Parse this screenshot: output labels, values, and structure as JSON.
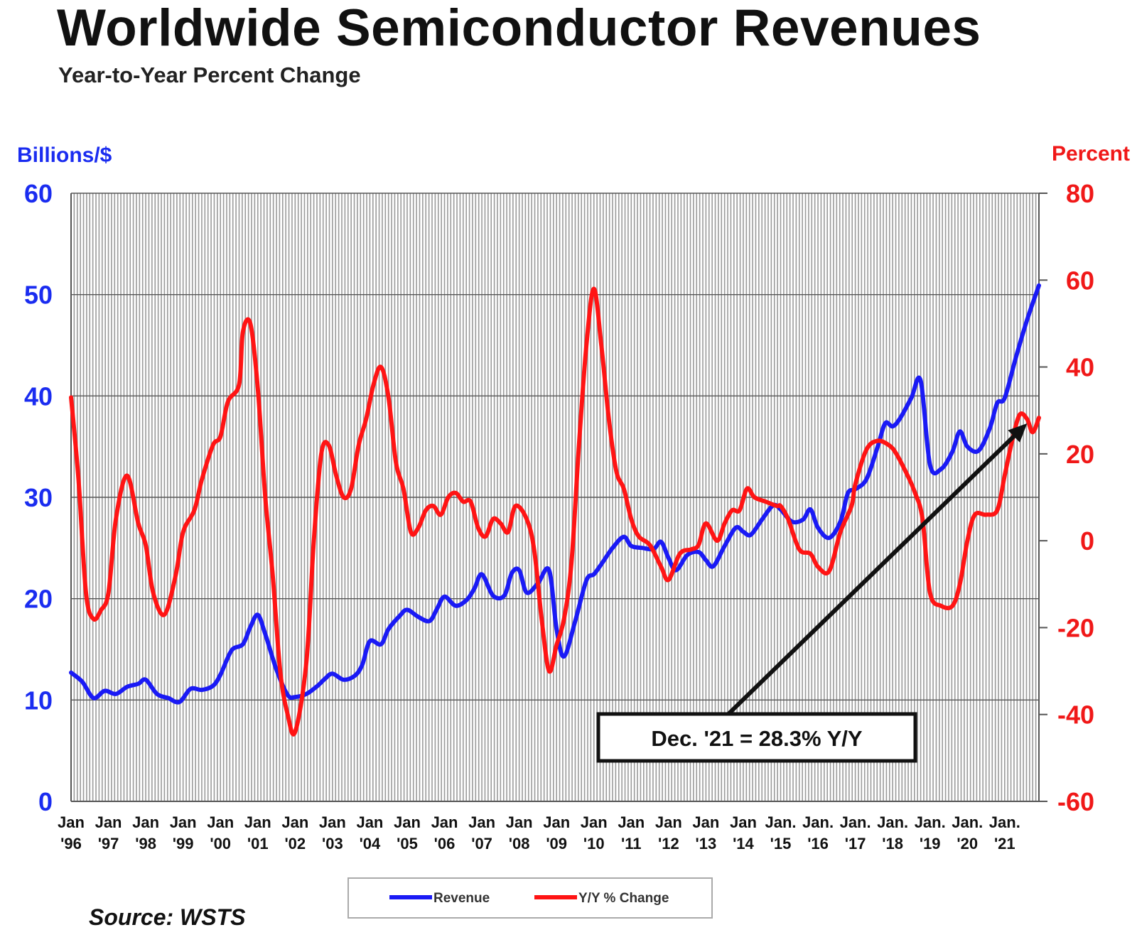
{
  "colors": {
    "revenue": "#1a1af5",
    "yoy": "#ff1414",
    "left_axis": "#1a2cf0",
    "right_axis": "#f01818",
    "grid": "#9a9a9a",
    "background": "#ffffff"
  },
  "chart_data": {
    "type": "line",
    "title": "Worldwide Semiconductor Revenues",
    "subtitle": "Year-to-Year Percent Change",
    "ylabel": "Billions/$",
    "y2label": "Percent",
    "ylim": [
      0,
      60
    ],
    "y2lim": [
      -60,
      80
    ],
    "yticks": [
      "0",
      "10",
      "20",
      "30",
      "40",
      "50",
      "60"
    ],
    "y2ticks": [
      "-60",
      "-40",
      "-20",
      "0",
      "20",
      "40",
      "60",
      "80"
    ],
    "xlim": [
      1996.0,
      2021.917
    ],
    "grid": true,
    "legend_position": "bottom",
    "annotation": {
      "text": "Dec. '21 = 28.3% Y/Y",
      "points_to": [
        2021.6,
        27
      ]
    },
    "source": "Source: WSTS",
    "x_tick_labels": [
      {
        "x": 1996,
        "line1": "Jan",
        "line2": "'96"
      },
      {
        "x": 1997,
        "line1": "Jan",
        "line2": "'97"
      },
      {
        "x": 1998,
        "line1": "Jan",
        "line2": "'98"
      },
      {
        "x": 1999,
        "line1": "Jan",
        "line2": "'99"
      },
      {
        "x": 2000,
        "line1": "Jan",
        "line2": "'00"
      },
      {
        "x": 2001,
        "line1": "Jan",
        "line2": "'01"
      },
      {
        "x": 2002,
        "line1": "Jan",
        "line2": "'02"
      },
      {
        "x": 2003,
        "line1": "Jan",
        "line2": "'03"
      },
      {
        "x": 2004,
        "line1": "Jan",
        "line2": "'04"
      },
      {
        "x": 2005,
        "line1": "Jan",
        "line2": "'05"
      },
      {
        "x": 2006,
        "line1": "Jan",
        "line2": "'06"
      },
      {
        "x": 2007,
        "line1": "Jan",
        "line2": "'07"
      },
      {
        "x": 2008,
        "line1": "Jan",
        "line2": "'08"
      },
      {
        "x": 2009,
        "line1": "Jan",
        "line2": "'09"
      },
      {
        "x": 2010,
        "line1": "Jan",
        "line2": "'10"
      },
      {
        "x": 2011,
        "line1": "Jan",
        "line2": "'11"
      },
      {
        "x": 2012,
        "line1": "Jan",
        "line2": "'12"
      },
      {
        "x": 2013,
        "line1": "Jan",
        "line2": "'13"
      },
      {
        "x": 2014,
        "line1": "Jan",
        "line2": "'14"
      },
      {
        "x": 2015,
        "line1": "Jan.",
        "line2": "'15"
      },
      {
        "x": 2016,
        "line1": "Jan.",
        "line2": "'16"
      },
      {
        "x": 2017,
        "line1": "Jan.",
        "line2": "'17"
      },
      {
        "x": 2018,
        "line1": "Jan.",
        "line2": "'18"
      },
      {
        "x": 2019,
        "line1": "Jan.",
        "line2": "'19"
      },
      {
        "x": 2020,
        "line1": "Jan.",
        "line2": "'20"
      },
      {
        "x": 2021,
        "line1": "Jan.",
        "line2": "'21"
      }
    ],
    "series": [
      {
        "name": "Revenue",
        "axis": "left",
        "points": [
          [
            1996.0,
            12.7
          ],
          [
            1996.3,
            11.8
          ],
          [
            1996.6,
            10.2
          ],
          [
            1996.9,
            10.9
          ],
          [
            1997.2,
            10.6
          ],
          [
            1997.5,
            11.3
          ],
          [
            1997.8,
            11.6
          ],
          [
            1998.0,
            12.0
          ],
          [
            1998.3,
            10.6
          ],
          [
            1998.6,
            10.2
          ],
          [
            1998.9,
            9.8
          ],
          [
            1999.2,
            11.1
          ],
          [
            1999.5,
            11.0
          ],
          [
            1999.8,
            11.4
          ],
          [
            2000.0,
            12.5
          ],
          [
            2000.3,
            14.9
          ],
          [
            2000.6,
            15.5
          ],
          [
            2000.8,
            17.2
          ],
          [
            2001.0,
            18.4
          ],
          [
            2001.2,
            16.5
          ],
          [
            2001.5,
            13.0
          ],
          [
            2001.8,
            10.5
          ],
          [
            2002.0,
            10.3
          ],
          [
            2002.3,
            10.6
          ],
          [
            2002.6,
            11.4
          ],
          [
            2002.8,
            12.1
          ],
          [
            2003.0,
            12.6
          ],
          [
            2003.3,
            12.0
          ],
          [
            2003.6,
            12.4
          ],
          [
            2003.8,
            13.5
          ],
          [
            2004.0,
            15.8
          ],
          [
            2004.3,
            15.5
          ],
          [
            2004.5,
            17.0
          ],
          [
            2004.8,
            18.3
          ],
          [
            2005.0,
            18.9
          ],
          [
            2005.3,
            18.2
          ],
          [
            2005.6,
            17.8
          ],
          [
            2005.8,
            19.0
          ],
          [
            2006.0,
            20.2
          ],
          [
            2006.3,
            19.3
          ],
          [
            2006.6,
            19.9
          ],
          [
            2006.8,
            21.0
          ],
          [
            2007.0,
            22.4
          ],
          [
            2007.3,
            20.3
          ],
          [
            2007.6,
            20.3
          ],
          [
            2007.8,
            22.5
          ],
          [
            2008.0,
            22.8
          ],
          [
            2008.2,
            20.6
          ],
          [
            2008.5,
            21.5
          ],
          [
            2008.8,
            22.8
          ],
          [
            2009.0,
            17.0
          ],
          [
            2009.2,
            14.3
          ],
          [
            2009.5,
            17.8
          ],
          [
            2009.8,
            21.8
          ],
          [
            2010.0,
            22.4
          ],
          [
            2010.2,
            23.4
          ],
          [
            2010.5,
            25.0
          ],
          [
            2010.8,
            26.1
          ],
          [
            2011.0,
            25.2
          ],
          [
            2011.3,
            25.0
          ],
          [
            2011.6,
            24.9
          ],
          [
            2011.8,
            25.6
          ],
          [
            2012.0,
            24.0
          ],
          [
            2012.2,
            22.8
          ],
          [
            2012.5,
            24.3
          ],
          [
            2012.8,
            24.6
          ],
          [
            2013.0,
            23.8
          ],
          [
            2013.2,
            23.2
          ],
          [
            2013.5,
            25.2
          ],
          [
            2013.8,
            27.0
          ],
          [
            2014.0,
            26.6
          ],
          [
            2014.2,
            26.3
          ],
          [
            2014.5,
            27.8
          ],
          [
            2014.8,
            29.2
          ],
          [
            2015.0,
            28.8
          ],
          [
            2015.3,
            27.6
          ],
          [
            2015.6,
            27.8
          ],
          [
            2015.8,
            28.8
          ],
          [
            2016.0,
            27.0
          ],
          [
            2016.3,
            26.0
          ],
          [
            2016.6,
            27.6
          ],
          [
            2016.8,
            30.4
          ],
          [
            2017.0,
            30.8
          ],
          [
            2017.3,
            31.8
          ],
          [
            2017.6,
            35.0
          ],
          [
            2017.8,
            37.3
          ],
          [
            2018.0,
            37.0
          ],
          [
            2018.2,
            37.8
          ],
          [
            2018.5,
            39.8
          ],
          [
            2018.75,
            41.5
          ],
          [
            2019.0,
            33.2
          ],
          [
            2019.3,
            32.8
          ],
          [
            2019.6,
            34.5
          ],
          [
            2019.8,
            36.5
          ],
          [
            2020.0,
            35.0
          ],
          [
            2020.3,
            34.6
          ],
          [
            2020.6,
            36.8
          ],
          [
            2020.8,
            39.3
          ],
          [
            2021.0,
            39.8
          ],
          [
            2021.3,
            43.8
          ],
          [
            2021.6,
            47.5
          ],
          [
            2021.917,
            50.9
          ]
        ]
      },
      {
        "name": "Y/Y % Change",
        "axis": "right",
        "points": [
          [
            1996.0,
            33
          ],
          [
            1996.2,
            14
          ],
          [
            1996.4,
            -12
          ],
          [
            1996.6,
            -18
          ],
          [
            1996.8,
            -16
          ],
          [
            1997.0,
            -12
          ],
          [
            1997.2,
            5
          ],
          [
            1997.5,
            15
          ],
          [
            1997.8,
            4
          ],
          [
            1998.0,
            -1
          ],
          [
            1998.2,
            -12
          ],
          [
            1998.5,
            -17
          ],
          [
            1998.8,
            -8
          ],
          [
            1999.0,
            2
          ],
          [
            1999.3,
            7
          ],
          [
            1999.5,
            14
          ],
          [
            1999.8,
            22
          ],
          [
            2000.0,
            24
          ],
          [
            2000.2,
            32
          ],
          [
            2000.5,
            36
          ],
          [
            2000.6,
            48
          ],
          [
            2000.8,
            50
          ],
          [
            2001.0,
            35
          ],
          [
            2001.2,
            10
          ],
          [
            2001.4,
            -8
          ],
          [
            2001.6,
            -30
          ],
          [
            2001.8,
            -40
          ],
          [
            2002.0,
            -44
          ],
          [
            2002.3,
            -28
          ],
          [
            2002.5,
            0
          ],
          [
            2002.7,
            20
          ],
          [
            2002.9,
            22
          ],
          [
            2003.1,
            15
          ],
          [
            2003.3,
            10
          ],
          [
            2003.5,
            12
          ],
          [
            2003.7,
            22
          ],
          [
            2003.9,
            28
          ],
          [
            2004.1,
            36
          ],
          [
            2004.3,
            40
          ],
          [
            2004.5,
            33
          ],
          [
            2004.7,
            18
          ],
          [
            2004.9,
            12
          ],
          [
            2005.1,
            2
          ],
          [
            2005.3,
            3
          ],
          [
            2005.5,
            7
          ],
          [
            2005.7,
            8
          ],
          [
            2005.9,
            6
          ],
          [
            2006.1,
            10
          ],
          [
            2006.3,
            11
          ],
          [
            2006.5,
            9
          ],
          [
            2006.7,
            9
          ],
          [
            2006.9,
            3
          ],
          [
            2007.1,
            1
          ],
          [
            2007.3,
            5
          ],
          [
            2007.5,
            4
          ],
          [
            2007.7,
            2
          ],
          [
            2007.9,
            8
          ],
          [
            2008.2,
            5
          ],
          [
            2008.4,
            -2
          ],
          [
            2008.6,
            -18
          ],
          [
            2008.8,
            -30
          ],
          [
            2009.0,
            -24
          ],
          [
            2009.2,
            -18
          ],
          [
            2009.4,
            -5
          ],
          [
            2009.6,
            22
          ],
          [
            2009.8,
            45
          ],
          [
            2010.0,
            58
          ],
          [
            2010.2,
            45
          ],
          [
            2010.4,
            28
          ],
          [
            2010.6,
            16
          ],
          [
            2010.8,
            12
          ],
          [
            2011.0,
            5
          ],
          [
            2011.2,
            1
          ],
          [
            2011.5,
            -1
          ],
          [
            2011.8,
            -6
          ],
          [
            2012.0,
            -9
          ],
          [
            2012.3,
            -3
          ],
          [
            2012.6,
            -2
          ],
          [
            2012.8,
            -1
          ],
          [
            2013.0,
            4
          ],
          [
            2013.3,
            0
          ],
          [
            2013.5,
            4
          ],
          [
            2013.7,
            7
          ],
          [
            2013.9,
            7
          ],
          [
            2014.1,
            12
          ],
          [
            2014.3,
            10
          ],
          [
            2014.6,
            9
          ],
          [
            2014.9,
            8
          ],
          [
            2015.0,
            8
          ],
          [
            2015.2,
            5
          ],
          [
            2015.5,
            -2
          ],
          [
            2015.8,
            -3
          ],
          [
            2016.0,
            -6
          ],
          [
            2016.3,
            -7
          ],
          [
            2016.6,
            2
          ],
          [
            2016.9,
            8
          ],
          [
            2017.0,
            13
          ],
          [
            2017.3,
            21
          ],
          [
            2017.6,
            23
          ],
          [
            2017.9,
            22
          ],
          [
            2018.1,
            20
          ],
          [
            2018.4,
            15
          ],
          [
            2018.6,
            11
          ],
          [
            2018.8,
            5
          ],
          [
            2019.0,
            -12
          ],
          [
            2019.3,
            -15
          ],
          [
            2019.6,
            -15
          ],
          [
            2019.8,
            -10
          ],
          [
            2020.0,
            0
          ],
          [
            2020.2,
            6
          ],
          [
            2020.5,
            6
          ],
          [
            2020.8,
            7
          ],
          [
            2021.0,
            15
          ],
          [
            2021.2,
            23
          ],
          [
            2021.4,
            29
          ],
          [
            2021.6,
            28
          ],
          [
            2021.75,
            25
          ],
          [
            2021.917,
            28.3
          ]
        ]
      }
    ]
  }
}
